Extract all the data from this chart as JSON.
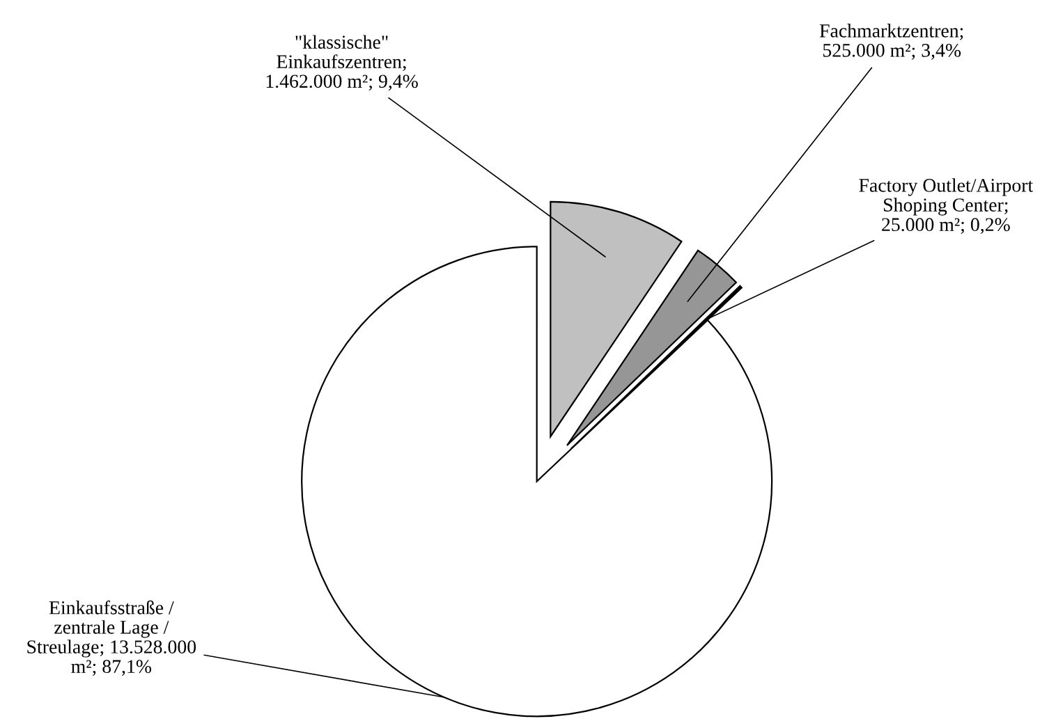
{
  "chart_data": {
    "type": "pie",
    "categories": [
      "\"klassische\"\nEinkaufszentren;\n1.462.000 m²; 9,4%",
      "Fachmarktzentren;\n525.000 m²; 3,4%",
      "Factory Outlet/Airport\nShoping Center;\n25.000 m²; 0,2%",
      "Einkaufsstraße /\nzentrale Lage /\nStreulage; 13.528.000\nm²; 87,1%"
    ],
    "values": [
      1462000,
      525000,
      25000,
      13528000
    ],
    "colors": [
      "#c0c0c0",
      "#969696",
      "#000000",
      "#ffffff"
    ],
    "legend": false
  }
}
